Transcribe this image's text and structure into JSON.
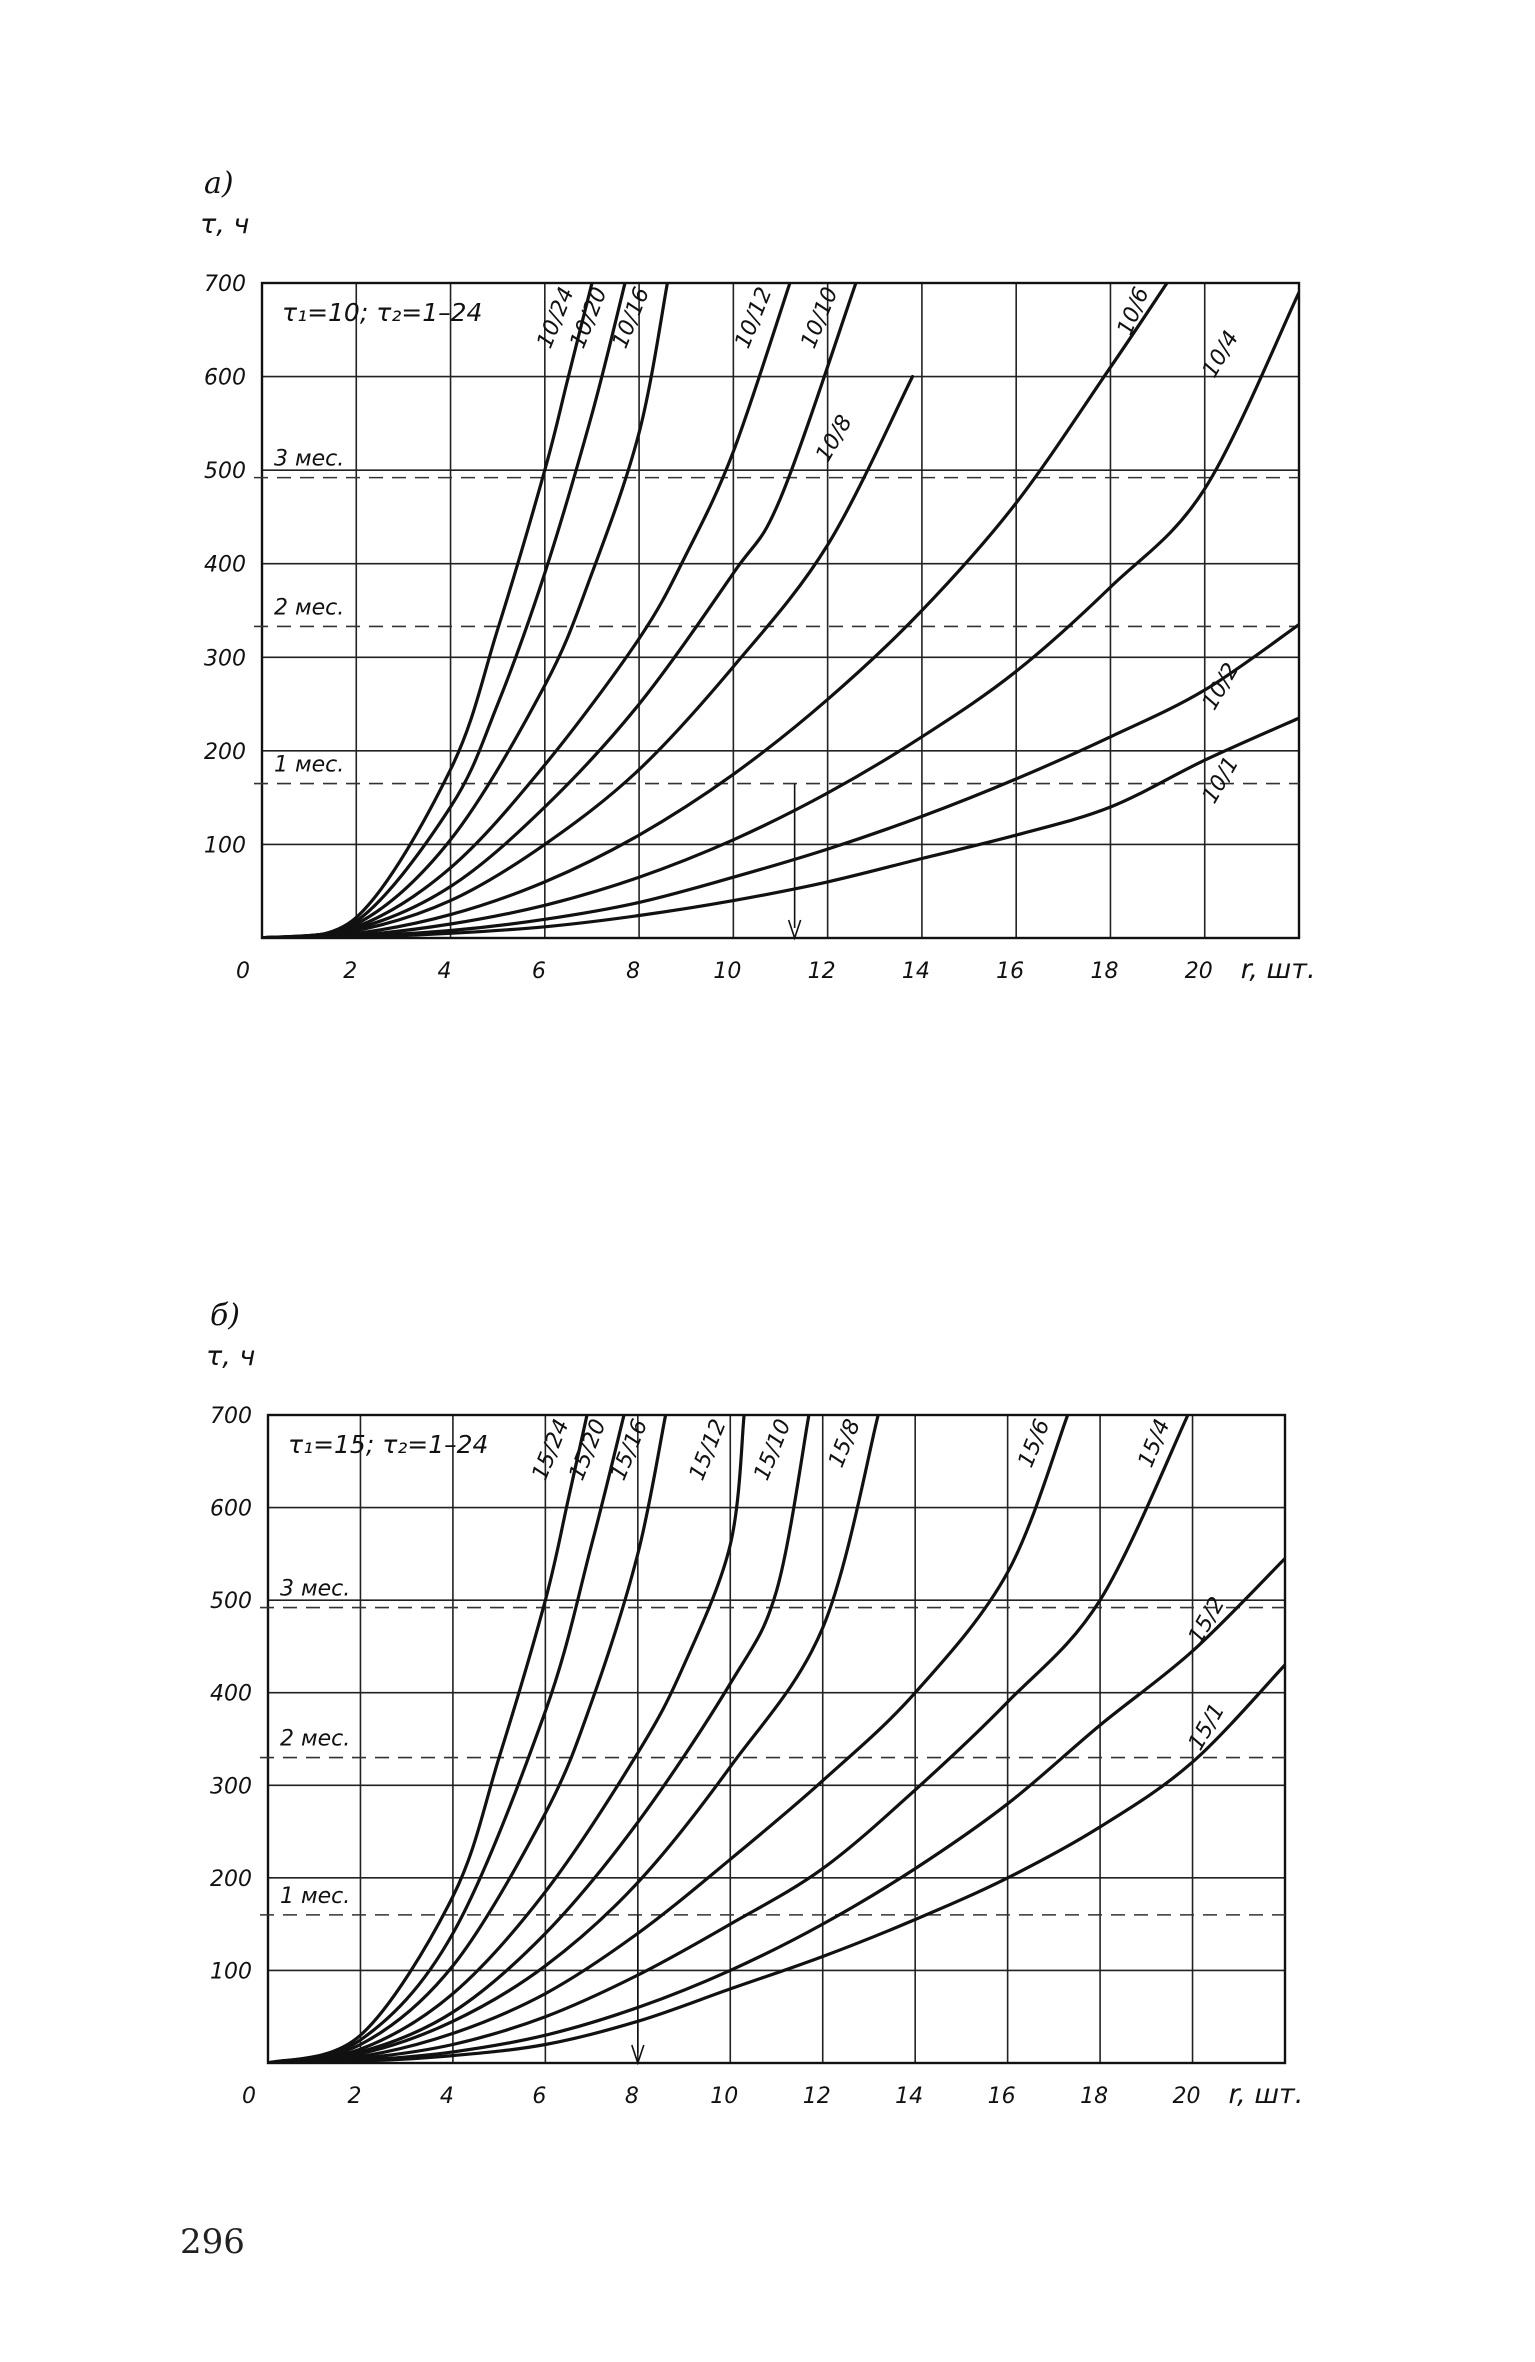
{
  "page_number": "296",
  "chart_data": [
    {
      "type": "line",
      "panel": "а)",
      "ylabel": "τ, ч",
      "xlabel": "r, шт.",
      "xlim": [
        0,
        22
      ],
      "ylim": [
        0,
        700
      ],
      "x_ticks": [
        0,
        2,
        4,
        6,
        8,
        10,
        12,
        14,
        16,
        18,
        20
      ],
      "y_ticks": [
        100,
        200,
        300,
        400,
        500,
        600,
        700
      ],
      "grid": true,
      "parameters": "τ₁=10; τ₂=1–24",
      "reference_lines": [
        {
          "label": "1 мес.",
          "y": 165
        },
        {
          "label": "2 мес.",
          "y": 333
        },
        {
          "label": "3 мес.",
          "y": 492
        }
      ],
      "marker": {
        "x": 11.3,
        "from_y": 165,
        "to_y": 0
      },
      "series": [
        {
          "name": "10/24",
          "x": [
            0,
            2,
            4,
            5,
            6,
            6.5,
            7.0
          ],
          "y": [
            0,
            22,
            180,
            330,
            500,
            600,
            700
          ]
        },
        {
          "name": "10/20",
          "x": [
            0,
            2,
            4,
            5,
            6,
            7,
            7.7
          ],
          "y": [
            0,
            18,
            140,
            250,
            390,
            560,
            700
          ]
        },
        {
          "name": "10/16",
          "x": [
            0,
            2,
            4,
            6,
            7,
            8,
            8.6
          ],
          "y": [
            0,
            15,
            105,
            270,
            390,
            540,
            700
          ]
        },
        {
          "name": "10/12",
          "x": [
            0,
            2,
            4,
            6,
            8,
            9,
            10,
            11.2
          ],
          "y": [
            0,
            12,
            75,
            185,
            320,
            410,
            520,
            700
          ]
        },
        {
          "name": "10/10",
          "x": [
            0,
            2,
            4,
            6,
            8,
            10,
            11,
            12.6
          ],
          "y": [
            0,
            10,
            55,
            140,
            250,
            390,
            470,
            700
          ]
        },
        {
          "name": "10/8",
          "x": [
            0,
            2,
            4,
            6,
            8,
            10,
            12,
            13.8
          ],
          "y": [
            0,
            8,
            40,
            100,
            180,
            290,
            420,
            600
          ]
        },
        {
          "name": "10/6",
          "x": [
            0,
            2,
            4,
            6,
            8,
            10,
            12,
            14,
            16,
            18,
            19.2
          ],
          "y": [
            0,
            5,
            25,
            60,
            110,
            175,
            255,
            350,
            465,
            610,
            700
          ]
        },
        {
          "name": "10/4",
          "x": [
            0,
            2,
            4,
            6,
            8,
            10,
            12,
            14,
            16,
            18,
            20,
            22
          ],
          "y": [
            0,
            3,
            15,
            35,
            65,
            105,
            155,
            215,
            285,
            375,
            480,
            690
          ]
        },
        {
          "name": "10/2",
          "x": [
            0,
            2,
            4,
            6,
            8,
            10,
            12,
            14,
            16,
            18,
            20,
            22
          ],
          "y": [
            0,
            2,
            8,
            20,
            38,
            65,
            95,
            130,
            170,
            215,
            265,
            335
          ]
        },
        {
          "name": "10/1",
          "x": [
            0,
            2,
            4,
            6,
            8,
            10,
            12,
            14,
            16,
            18,
            20,
            22
          ],
          "y": [
            0,
            1,
            5,
            12,
            24,
            40,
            60,
            85,
            110,
            140,
            190,
            235
          ]
        }
      ]
    },
    {
      "type": "line",
      "panel": "б)",
      "ylabel": "τ, ч",
      "xlabel": "r, шт.",
      "xlim": [
        0,
        22
      ],
      "ylim": [
        0,
        700
      ],
      "x_ticks": [
        0,
        2,
        4,
        6,
        8,
        10,
        12,
        14,
        16,
        18,
        20
      ],
      "y_ticks": [
        100,
        200,
        300,
        400,
        500,
        600,
        700
      ],
      "grid": true,
      "parameters": "τ₁=15; τ₂=1–24",
      "reference_lines": [
        {
          "label": "1 мес.",
          "y": 160
        },
        {
          "label": "2 мес.",
          "y": 330
        },
        {
          "label": "3 мес.",
          "y": 492
        }
      ],
      "marker": {
        "x": 8,
        "from_y": 160,
        "to_y": 0
      },
      "series": [
        {
          "name": "15/24",
          "x": [
            0,
            2,
            4,
            5,
            6,
            6.5,
            6.9
          ],
          "y": [
            0,
            30,
            180,
            330,
            500,
            610,
            700
          ]
        },
        {
          "name": "15/20",
          "x": [
            0,
            2,
            4,
            6,
            7,
            7.7
          ],
          "y": [
            0,
            25,
            140,
            380,
            560,
            700
          ]
        },
        {
          "name": "15/16",
          "x": [
            0,
            2,
            4,
            6,
            7,
            8,
            8.6
          ],
          "y": [
            0,
            20,
            105,
            270,
            390,
            550,
            700
          ]
        },
        {
          "name": "15/12",
          "x": [
            0,
            2,
            4,
            6,
            8,
            9,
            10,
            10.3
          ],
          "y": [
            0,
            15,
            75,
            185,
            335,
            430,
            560,
            700
          ]
        },
        {
          "name": "15/10",
          "x": [
            0,
            2,
            4,
            6,
            8,
            10,
            11,
            11.7
          ],
          "y": [
            0,
            12,
            55,
            140,
            260,
            410,
            510,
            700
          ]
        },
        {
          "name": "15/8",
          "x": [
            0,
            2,
            4,
            6,
            8,
            10,
            12,
            13.2
          ],
          "y": [
            0,
            10,
            45,
            105,
            195,
            320,
            470,
            700
          ]
        },
        {
          "name": "15/6",
          "x": [
            0,
            2,
            4,
            6,
            8,
            10,
            12,
            14,
            16,
            17.3
          ],
          "y": [
            0,
            7,
            32,
            75,
            140,
            220,
            305,
            400,
            530,
            700
          ]
        },
        {
          "name": "15/4",
          "x": [
            0,
            2,
            4,
            6,
            8,
            10,
            12,
            14,
            16,
            18,
            19.9
          ],
          "y": [
            0,
            5,
            20,
            50,
            95,
            150,
            210,
            295,
            390,
            500,
            700
          ]
        },
        {
          "name": "15/2",
          "x": [
            0,
            2,
            4,
            6,
            8,
            10,
            12,
            14,
            16,
            18,
            20,
            22
          ],
          "y": [
            0,
            3,
            12,
            30,
            60,
            100,
            150,
            210,
            280,
            365,
            445,
            545
          ]
        },
        {
          "name": "15/1",
          "x": [
            0,
            2,
            4,
            6,
            8,
            10,
            12,
            14,
            16,
            18,
            20,
            22
          ],
          "y": [
            0,
            2,
            8,
            20,
            45,
            80,
            115,
            155,
            200,
            255,
            325,
            430
          ]
        }
      ]
    }
  ]
}
